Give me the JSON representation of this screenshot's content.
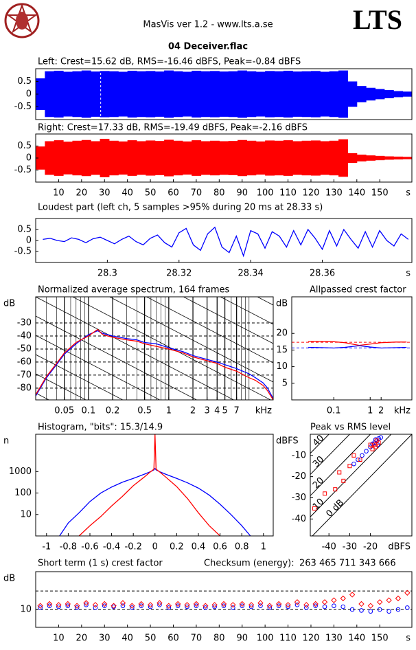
{
  "header": {
    "app": "MasVis ver 1.2 - www.lts.a.se",
    "logo_text": "LTS",
    "file": "04 Deceiver.flac"
  },
  "chart_data": [
    {
      "type": "waveform",
      "title": "Left: Crest=15.62 dB, RMS=-16.46 dBFS, Peak=-0.84 dBFS",
      "color": "#0000ff",
      "x": [
        2,
        6,
        10,
        14,
        18,
        22,
        26,
        30,
        34,
        38,
        42,
        46,
        50,
        54,
        58,
        62,
        66,
        70,
        74,
        78,
        82,
        86,
        90,
        94,
        98,
        102,
        106,
        110,
        114,
        118,
        122,
        126,
        130,
        134,
        138,
        142,
        146,
        150,
        154,
        158,
        162
      ],
      "values": [
        0.62,
        0.9,
        0.92,
        0.88,
        0.9,
        0.93,
        0.89,
        0.91,
        0.9,
        0.88,
        0.92,
        0.9,
        0.91,
        0.89,
        0.93,
        0.9,
        0.88,
        0.92,
        0.9,
        0.91,
        0.89,
        0.9,
        0.93,
        0.9,
        0.88,
        0.91,
        0.9,
        0.92,
        0.89,
        0.9,
        0.91,
        0.88,
        0.9,
        0.93,
        0.5,
        0.32,
        0.25,
        0.2,
        0.16,
        0.12,
        0.1
      ],
      "marker_x": 28.33,
      "xlim": [
        0,
        164
      ],
      "ylim": [
        -1,
        1
      ],
      "yticks": [
        0.5,
        0,
        -0.5
      ]
    },
    {
      "type": "waveform",
      "title": "Right: Crest=17.33 dB, RMS=-19.49 dBFS, Peak=-2.16 dBFS",
      "color": "#ff0000",
      "x": [
        2,
        6,
        10,
        14,
        18,
        22,
        26,
        30,
        34,
        38,
        42,
        46,
        50,
        54,
        58,
        62,
        66,
        70,
        74,
        78,
        82,
        86,
        90,
        94,
        98,
        102,
        106,
        110,
        114,
        118,
        122,
        126,
        130,
        134,
        138,
        142,
        146,
        150,
        154,
        158,
        162
      ],
      "values": [
        0.48,
        0.7,
        0.74,
        0.68,
        0.72,
        0.75,
        0.7,
        0.8,
        0.72,
        0.69,
        0.74,
        0.7,
        0.73,
        0.71,
        0.76,
        0.72,
        0.69,
        0.74,
        0.7,
        0.72,
        0.7,
        0.71,
        0.75,
        0.72,
        0.69,
        0.73,
        0.72,
        0.74,
        0.7,
        0.72,
        0.73,
        0.7,
        0.72,
        0.78,
        0.2,
        0.14,
        0.11,
        0.09,
        0.07,
        0.06,
        0.05
      ],
      "xlim": [
        0,
        164
      ],
      "ylim": [
        -1,
        1
      ],
      "yticks": [
        0.5,
        0,
        -0.5
      ],
      "xticks": [
        10,
        20,
        30,
        40,
        50,
        60,
        70,
        80,
        90,
        100,
        110,
        120,
        130,
        140,
        150
      ],
      "xlabel": "s"
    },
    {
      "type": "line",
      "title": "Loudest part (left  ch, 5 samples >95% during 20 ms at 28.33 s)",
      "x": [
        28.282,
        28.284,
        28.286,
        28.288,
        28.29,
        28.292,
        28.294,
        28.296,
        28.298,
        28.3,
        28.302,
        28.304,
        28.306,
        28.308,
        28.31,
        28.312,
        28.314,
        28.316,
        28.318,
        28.32,
        28.322,
        28.324,
        28.326,
        28.328,
        28.33,
        28.332,
        28.334,
        28.336,
        28.338,
        28.34,
        28.342,
        28.344,
        28.346,
        28.348,
        28.35,
        28.352,
        28.354,
        28.356,
        28.358,
        28.36,
        28.362,
        28.364,
        28.366,
        28.368,
        28.37,
        28.372,
        28.374,
        28.376,
        28.378,
        28.38,
        28.382,
        28.384
      ],
      "series": [
        {
          "color": "#0000ff",
          "values": [
            0.05,
            0.1,
            0.0,
            -0.05,
            0.12,
            0.05,
            -0.1,
            0.08,
            0.15,
            0.0,
            -0.15,
            0.05,
            0.2,
            -0.05,
            -0.2,
            0.1,
            0.25,
            -0.1,
            -0.3,
            0.35,
            0.55,
            -0.2,
            -0.45,
            0.3,
            0.6,
            -0.3,
            -0.55,
            0.2,
            -0.7,
            0.45,
            0.3,
            -0.35,
            0.4,
            0.2,
            -0.3,
            0.45,
            -0.2,
            0.5,
            0.1,
            -0.4,
            0.45,
            -0.25,
            0.5,
            0.05,
            -0.35,
            0.4,
            -0.3,
            0.45,
            0.0,
            -0.25,
            0.3,
            0.05
          ]
        }
      ],
      "xlim": [
        28.28,
        28.385
      ],
      "ylim": [
        -1,
        1
      ],
      "yticks": [
        0.5,
        0,
        -0.5
      ],
      "xticks": [
        28.3,
        28.32,
        28.34,
        28.36
      ],
      "xlabel": "s"
    },
    {
      "type": "line",
      "title": "Normalized average spectrum, 164 frames",
      "ylabel": "dB",
      "xlabel": "kHz",
      "xlog": true,
      "grid": true,
      "minor_grid": true,
      "slope_lines": true,
      "x": [
        0.022,
        0.03,
        0.04,
        0.05,
        0.07,
        0.1,
        0.13,
        0.15,
        0.2,
        0.3,
        0.4,
        0.5,
        0.7,
        1,
        1.5,
        2,
        3,
        4,
        5,
        7,
        10,
        12,
        15,
        17,
        20
      ],
      "series": [
        {
          "color": "#0000ff",
          "values": [
            -86,
            -72,
            -62,
            -54,
            -46,
            -39,
            -36,
            -38,
            -40,
            -42,
            -43,
            -45,
            -46,
            -49,
            -52,
            -55,
            -58,
            -60,
            -62,
            -65,
            -69,
            -72,
            -76,
            -80,
            -88
          ]
        },
        {
          "color": "#ff0000",
          "values": [
            -85,
            -71,
            -61,
            -53,
            -45,
            -40,
            -35,
            -39,
            -41,
            -43,
            -44,
            -46,
            -48,
            -50,
            -53,
            -56,
            -59,
            -61,
            -64,
            -67,
            -72,
            -74,
            -78,
            -82,
            -89
          ]
        }
      ],
      "xlim": [
        0.022,
        20
      ],
      "ylim": [
        -89,
        -10
      ],
      "xticks": [
        0.05,
        0.1,
        0.2,
        0.5,
        1,
        2,
        3,
        4,
        5,
        7
      ],
      "yticks": [
        -30,
        -40,
        -50,
        -60,
        -70,
        -80
      ]
    },
    {
      "type": "line",
      "title": "Allpassed crest factor",
      "ylabel": "dB",
      "xlabel": "kHz",
      "xlog": true,
      "x": [
        0.02,
        0.05,
        0.1,
        0.2,
        0.5,
        1,
        2,
        5,
        10
      ],
      "series": [
        {
          "color": "#ff0000",
          "reference": 17.33,
          "values": [
            17.6,
            17.6,
            17.5,
            17.2,
            16.4,
            16.8,
            17.2,
            17.4,
            17.4
          ]
        },
        {
          "color": "#0000ff",
          "reference": 15.62,
          "values": [
            15.8,
            15.7,
            15.6,
            15.8,
            16.3,
            15.9,
            15.6,
            15.7,
            15.8
          ]
        }
      ],
      "xlim": [
        0.007,
        14
      ],
      "ylim": [
        0,
        31
      ],
      "xticks": [
        0.1,
        1,
        2
      ],
      "yticks": [
        20,
        15,
        10,
        5
      ]
    },
    {
      "type": "line",
      "title": "Histogram, \"bits\": 15.3/14.9",
      "ylabel": "n",
      "ylog": true,
      "x": [
        -0.88,
        -0.8,
        -0.7,
        -0.6,
        -0.5,
        -0.4,
        -0.3,
        -0.2,
        -0.1,
        -0.05,
        -0.01,
        0,
        0.01,
        0.05,
        0.1,
        0.2,
        0.3,
        0.4,
        0.5,
        0.6,
        0.7,
        0.8,
        0.88
      ],
      "series": [
        {
          "color": "#0000ff",
          "values": [
            1,
            4,
            12,
            40,
            100,
            190,
            320,
            480,
            750,
            950,
            1200,
            1400,
            1200,
            950,
            750,
            480,
            300,
            170,
            80,
            30,
            10,
            3,
            1
          ]
        },
        {
          "color": "#ff0000",
          "values": [
            null,
            null,
            1,
            3,
            8,
            25,
            70,
            220,
            550,
            900,
            1300,
            55000,
            1300,
            900,
            550,
            200,
            55,
            12,
            3,
            1,
            null,
            null,
            null
          ]
        }
      ],
      "xlim": [
        -1.1,
        1.09
      ],
      "ylim": [
        1,
        55000
      ],
      "xticks": [
        -1,
        -0.8,
        -0.6,
        -0.4,
        -0.2,
        0,
        0.2,
        0.4,
        0.6,
        0.8,
        1
      ],
      "yticks": [
        10,
        100,
        1000
      ]
    },
    {
      "type": "scatter",
      "title": "Peak vs RMS level",
      "ylabel": "dBFS",
      "xlabel": "dBFS",
      "crest_lines": [
        {
          "value": 0,
          "label": "0 dB"
        },
        10,
        20,
        30,
        40
      ],
      "series": [
        {
          "color": "#0000ff",
          "marker": "circle",
          "x": [
            -16,
            -17,
            -18,
            -19,
            -20,
            -22,
            -24,
            -26,
            -28,
            -17.5,
            -15,
            -16.5
          ],
          "values": [
            -2,
            -3,
            -4,
            -4.5,
            -6,
            -8,
            -10,
            -12,
            -14,
            -2.5,
            -1.5,
            -5
          ]
        },
        {
          "color": "#ff0000",
          "marker": "square",
          "x": [
            -17,
            -18,
            -19,
            -20,
            -16,
            -17.5,
            -35,
            -33,
            -37,
            -30,
            -42,
            -47,
            -28,
            -25
          ],
          "values": [
            -3,
            -5,
            -7,
            -5,
            -4,
            -6,
            -18,
            -22,
            -26,
            -15,
            -28,
            -35,
            -10,
            -12
          ]
        }
      ],
      "xlim": [
        -49,
        0
      ],
      "ylim": [
        -48,
        0
      ],
      "xticks": [
        -40,
        -30,
        -20
      ],
      "yticks": [
        -10,
        -20,
        -30,
        -40
      ]
    },
    {
      "type": "scatter",
      "title": "Short term (1 s) crest factor",
      "ylabel": "dB",
      "xlabel": "s",
      "grid": true,
      "checksum_label": "Checksum (energy):",
      "checksum": "263 465 711 343 666",
      "dashed_lines": [
        20
      ],
      "series": [
        {
          "color": "#0000ff",
          "marker": "circle",
          "x": [
            2,
            6,
            10,
            14,
            18,
            22,
            26,
            30,
            34,
            38,
            42,
            46,
            50,
            54,
            58,
            62,
            66,
            70,
            74,
            78,
            82,
            86,
            90,
            94,
            98,
            102,
            106,
            110,
            114,
            118,
            122,
            126,
            130,
            134,
            138,
            142,
            146,
            150,
            154,
            158,
            162
          ],
          "values": [
            11,
            12,
            11.5,
            12,
            11,
            12.5,
            11,
            12,
            11.5,
            12,
            11,
            12,
            11.5,
            12.5,
            11,
            12,
            11.5,
            12,
            11,
            11.5,
            12,
            11,
            12,
            11.5,
            12,
            11,
            12,
            11.5,
            12.5,
            11,
            12,
            11.5,
            12,
            11.5,
            10,
            9.5,
            9,
            10,
            9,
            10,
            11
          ]
        },
        {
          "color": "#ff0000",
          "marker": "diamond",
          "x": [
            2,
            6,
            10,
            14,
            18,
            22,
            26,
            30,
            34,
            38,
            42,
            46,
            50,
            54,
            58,
            62,
            66,
            70,
            74,
            78,
            82,
            86,
            90,
            94,
            98,
            102,
            106,
            110,
            114,
            118,
            122,
            126,
            130,
            134,
            138,
            142,
            146,
            150,
            154,
            158,
            162
          ],
          "values": [
            12,
            13,
            12.5,
            13,
            12,
            13.5,
            12.5,
            13,
            12,
            13.5,
            12,
            13,
            12.5,
            13.5,
            12,
            13,
            12.5,
            13,
            12,
            12.5,
            13,
            12.5,
            13,
            12.5,
            13.5,
            12,
            13,
            12.5,
            14,
            12.5,
            13,
            14,
            15,
            16,
            18,
            13,
            12,
            14,
            15,
            16,
            19
          ]
        }
      ],
      "xlim": [
        0,
        164
      ],
      "ylim": [
        0.4,
        30.4
      ],
      "xticks": [
        10,
        20,
        30,
        40,
        50,
        60,
        70,
        80,
        90,
        100,
        110,
        120,
        130,
        140,
        150
      ],
      "yticks": [
        10
      ]
    }
  ]
}
